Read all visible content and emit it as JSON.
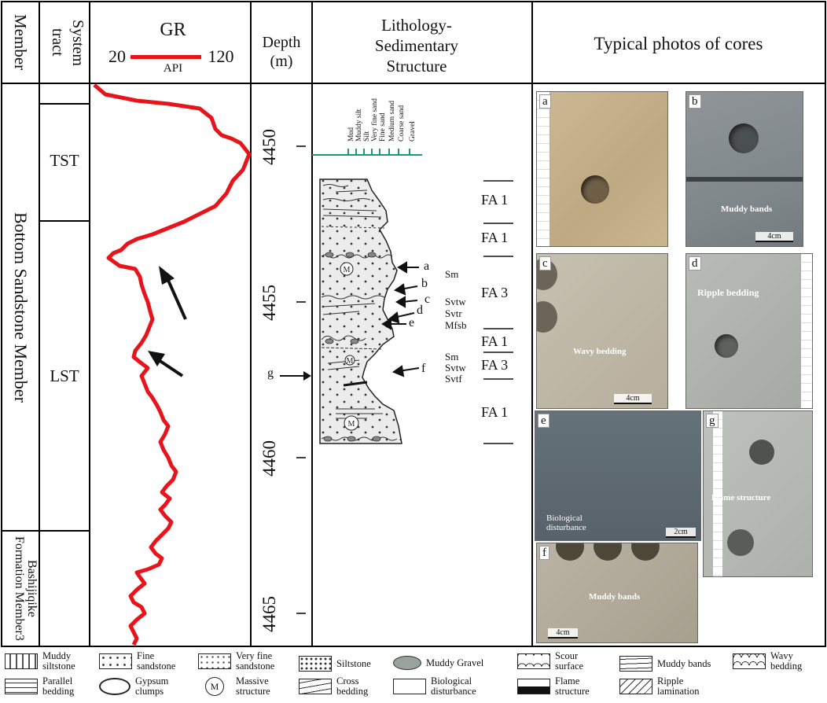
{
  "headers": {
    "member": "Member",
    "system_tract": "System tract",
    "gr_title": "GR",
    "gr_min": "20",
    "gr_max": "120",
    "gr_unit": "API",
    "depth": "Depth",
    "depth_unit": "(m)",
    "lithology": "Lithology-",
    "sedimentary": "Sedimentary",
    "structure": "Structure",
    "photos": "Typical photos of cores"
  },
  "members": {
    "bottom": "Bottom Sandstone Member",
    "bashijiqike": "Bashijiqike Formation Member3"
  },
  "tracts": {
    "tst": "TST",
    "lst": "LST"
  },
  "depth_ticks": [
    "4450",
    "4455",
    "4460",
    "4465"
  ],
  "grain_sizes": [
    "Mud",
    "Muddy silt",
    "Silt",
    "Very fine sand",
    "Fine sand",
    "Medium sand",
    "Coarse sand",
    "Gravel"
  ],
  "pointers": {
    "a": "a",
    "b": "b",
    "c": "c",
    "d": "d",
    "e": "e",
    "f": "f",
    "g": "g"
  },
  "codes": {
    "sm1": "Sm",
    "svtw1": "Svtw",
    "svtr": "Svtr",
    "mfsb": "Mfsb",
    "sm2": "Sm",
    "svtw2": "Svtw",
    "svtf": "Svtf"
  },
  "facies": [
    "FA 1",
    "FA 1",
    "FA 3",
    "FA 1",
    "FA 3",
    "FA 1"
  ],
  "photos": {
    "a": {
      "label": "a"
    },
    "b": {
      "label": "b",
      "text": "Muddy bands",
      "scale": "4cm"
    },
    "c": {
      "label": "c",
      "text": "Wavy bedding",
      "scale": "4cm"
    },
    "d": {
      "label": "d",
      "text": "Ripple bedding"
    },
    "e": {
      "label": "e",
      "text": "Biological disturbance",
      "scale": "2cm"
    },
    "f": {
      "label": "f",
      "text": "Muddy bands",
      "scale": "4cm"
    },
    "g": {
      "label": "g",
      "text": "Flame structure"
    }
  },
  "legend": {
    "muddy_siltstone": "Muddy siltstone",
    "fine_sandstone": "Fine sandstone",
    "very_fine_sandstone": "Very fine sandstone",
    "siltstone": "Siltstone",
    "muddy_gravel": "Muddy Gravel",
    "scour_surface": "Scour surface",
    "muddy_bands": "Muddy bands",
    "wavy_bedding": "Wavy bedding",
    "parallel_bedding": "Parallel bedding",
    "gypsum_clumps": "Gypsum clumps",
    "massive_structure": "Massive structure",
    "massive_symbol": "M",
    "cross_bedding": "Cross bedding",
    "biological_disturbance": "Biological disturbance",
    "flame_structure": "Flame structure",
    "ripple_lamination": "Ripple lamination"
  },
  "colors": {
    "gr_curve": "#e8141b",
    "grain_scale": "#1a9a7a",
    "lith_fill": "#e9e9e9"
  }
}
